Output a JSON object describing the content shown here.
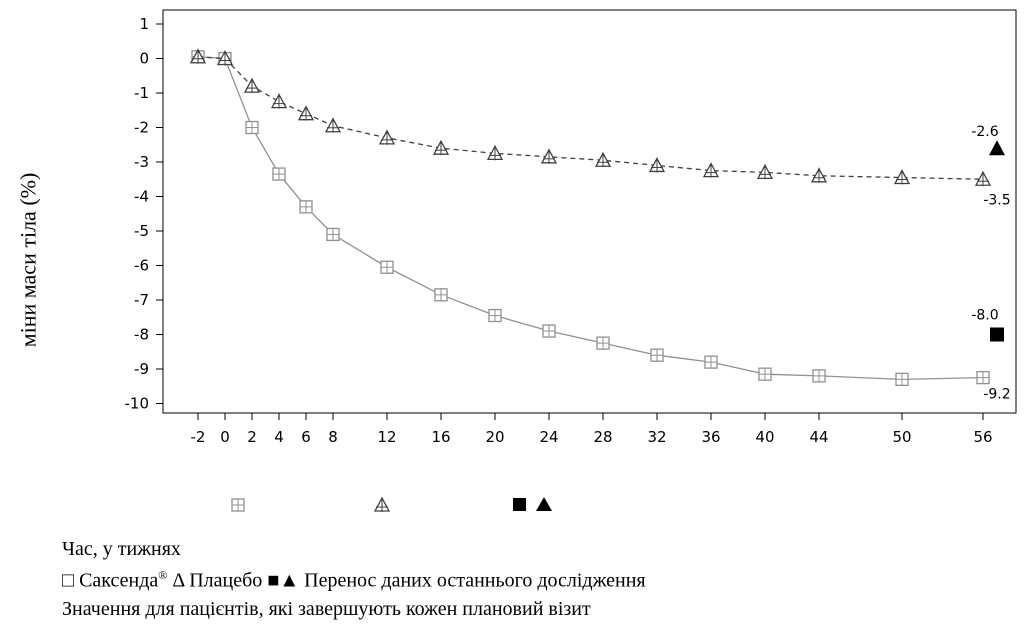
{
  "chart_data": {
    "type": "line",
    "ylabel": "міни маси тіла (%)",
    "xlabel": "Час, у тижнях",
    "x": [
      -2,
      0,
      2,
      4,
      6,
      8,
      12,
      16,
      20,
      24,
      28,
      32,
      36,
      40,
      44,
      50,
      56
    ],
    "xticks": [
      "-2",
      "0",
      "2",
      "4",
      "6",
      "8",
      "12",
      "16",
      "20",
      "24",
      "28",
      "32",
      "36",
      "40",
      "44",
      "50",
      "56"
    ],
    "ylim": [
      -10.3,
      1.3
    ],
    "yticks": [
      "1",
      "0",
      "-1",
      "-2",
      "-3",
      "-4",
      "-5",
      "-6",
      "-7",
      "-8",
      "-9",
      "-10"
    ],
    "series": [
      {
        "name": "Саксенда",
        "marker": "square-open",
        "line": "solid",
        "color": "#909090",
        "values": [
          0.05,
          0.0,
          -2.0,
          -3.35,
          -4.3,
          -5.1,
          -6.05,
          -6.85,
          -7.45,
          -7.9,
          -8.25,
          -8.6,
          -8.8,
          -9.15,
          -9.2,
          -9.3,
          -9.25
        ]
      },
      {
        "name": "Плацебо",
        "marker": "triangle-open",
        "line": "dashed",
        "color": "#404040",
        "values": [
          0.05,
          0.0,
          -0.8,
          -1.25,
          -1.6,
          -1.95,
          -2.3,
          -2.6,
          -2.75,
          -2.85,
          -2.95,
          -3.1,
          -3.25,
          -3.3,
          -3.4,
          -3.45,
          -3.5
        ]
      }
    ],
    "end_labels": {
      "saxenda_last": "-9.2",
      "placebo_last": "-3.5"
    },
    "locf": [
      {
        "marker": "square-filled",
        "value": -8.0,
        "label": "-8.0"
      },
      {
        "marker": "triangle-filled",
        "value": -2.6,
        "label": "-2.6"
      }
    ],
    "grid": false
  },
  "caption": {
    "time_label": "Час, у тижнях",
    "legend_square": "□",
    "legend_saxenda": " Саксенда",
    "legend_reg": "®",
    "legend_delta": " Δ",
    "legend_placebo": " Плацебо ",
    "legend_filled": "■▲",
    "legend_transfer": " Перенос даних останнього дослідження",
    "note": "Значення для пацієнтів, які завершують кожен плановий візит"
  }
}
